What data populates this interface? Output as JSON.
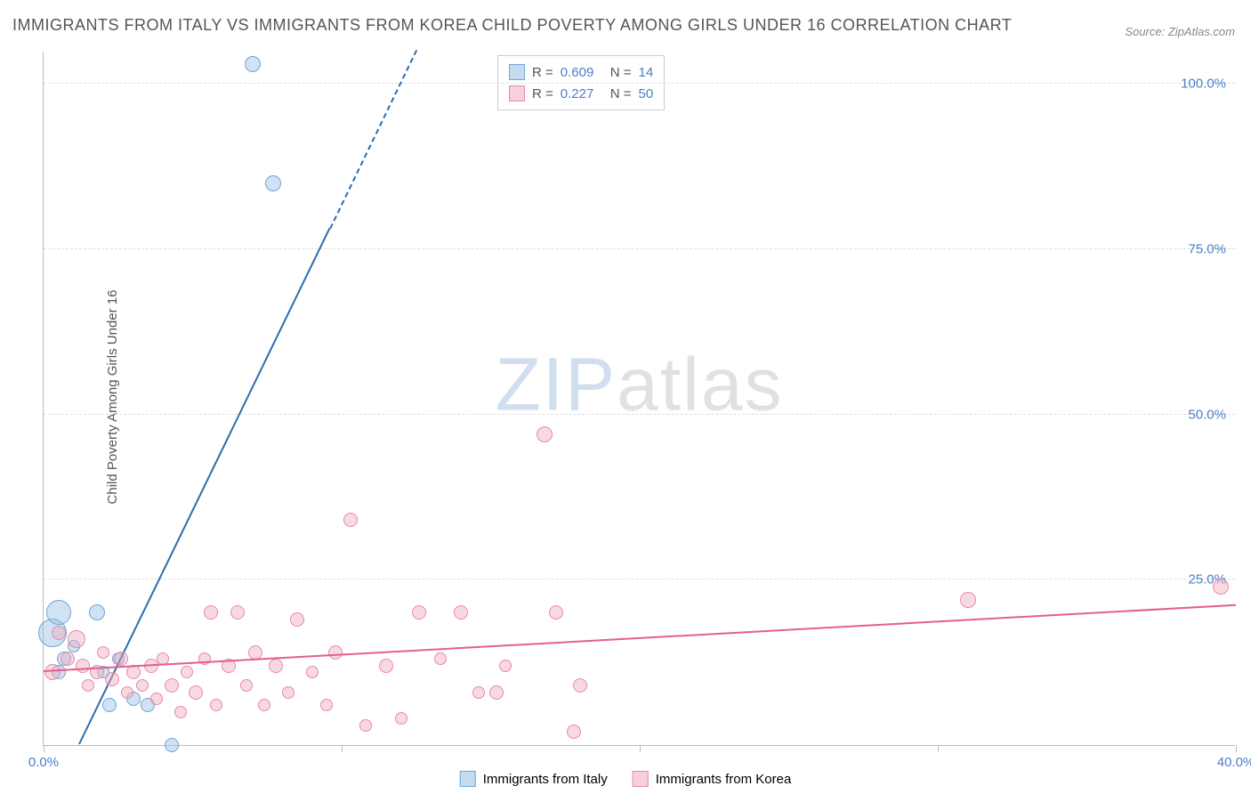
{
  "title": "IMMIGRANTS FROM ITALY VS IMMIGRANTS FROM KOREA CHILD POVERTY AMONG GIRLS UNDER 16 CORRELATION CHART",
  "source_label": "Source:",
  "source_value": "ZipAtlas.com",
  "ylabel": "Child Poverty Among Girls Under 16",
  "watermark_a": "ZIP",
  "watermark_b": "atlas",
  "chart": {
    "type": "scatter",
    "xlim": [
      0,
      40
    ],
    "ylim": [
      0,
      105
    ],
    "xtick_positions": [
      0,
      10,
      20,
      30,
      40
    ],
    "xtick_labels": [
      "0.0%",
      "",
      "",
      "",
      "40.0%"
    ],
    "ytick_positions": [
      25,
      50,
      75,
      100
    ],
    "ytick_labels": [
      "25.0%",
      "50.0%",
      "75.0%",
      "100.0%"
    ],
    "background_color": "#ffffff",
    "grid_color": "#dddddd",
    "axis_color": "#bbbbbb",
    "tick_label_color": "#4a7ec9",
    "series": [
      {
        "name": "Immigrants from Italy",
        "fill": "rgba(150,190,230,0.45)",
        "stroke": "#6fa4d8",
        "line_color": "#2b6cb0",
        "R": "0.609",
        "N": "14",
        "points": [
          {
            "x": 0.3,
            "y": 17,
            "r": 16
          },
          {
            "x": 0.5,
            "y": 20,
            "r": 14
          },
          {
            "x": 0.5,
            "y": 11,
            "r": 8
          },
          {
            "x": 0.7,
            "y": 13,
            "r": 8
          },
          {
            "x": 1.0,
            "y": 15,
            "r": 7
          },
          {
            "x": 1.8,
            "y": 20,
            "r": 9
          },
          {
            "x": 2.0,
            "y": 11,
            "r": 7
          },
          {
            "x": 2.2,
            "y": 6,
            "r": 8
          },
          {
            "x": 2.5,
            "y": 13,
            "r": 7
          },
          {
            "x": 3.0,
            "y": 7,
            "r": 8
          },
          {
            "x": 3.5,
            "y": 6,
            "r": 8
          },
          {
            "x": 4.3,
            "y": 0,
            "r": 8
          },
          {
            "x": 7.0,
            "y": 103,
            "r": 9
          },
          {
            "x": 7.7,
            "y": 85,
            "r": 9
          }
        ],
        "regression": {
          "x1": 1.2,
          "y1": 0,
          "x2": 9.6,
          "y2": 78,
          "x2_dash": 12.5,
          "y2_dash": 105
        }
      },
      {
        "name": "Immigrants from Korea",
        "fill": "rgba(240,170,190,0.45)",
        "stroke": "#e68aa4",
        "line_color": "#e45f8a",
        "R": "0.227",
        "N": "50",
        "points": [
          {
            "x": 0.3,
            "y": 11,
            "r": 9
          },
          {
            "x": 0.5,
            "y": 17,
            "r": 8
          },
          {
            "x": 0.8,
            "y": 13,
            "r": 8
          },
          {
            "x": 1.1,
            "y": 16,
            "r": 10
          },
          {
            "x": 1.3,
            "y": 12,
            "r": 8
          },
          {
            "x": 1.5,
            "y": 9,
            "r": 7
          },
          {
            "x": 1.8,
            "y": 11,
            "r": 8
          },
          {
            "x": 2.0,
            "y": 14,
            "r": 7
          },
          {
            "x": 2.3,
            "y": 10,
            "r": 8
          },
          {
            "x": 2.6,
            "y": 13,
            "r": 8
          },
          {
            "x": 2.8,
            "y": 8,
            "r": 7
          },
          {
            "x": 3.0,
            "y": 11,
            "r": 8
          },
          {
            "x": 3.3,
            "y": 9,
            "r": 7
          },
          {
            "x": 3.6,
            "y": 12,
            "r": 8
          },
          {
            "x": 3.8,
            "y": 7,
            "r": 7
          },
          {
            "x": 4.0,
            "y": 13,
            "r": 7
          },
          {
            "x": 4.3,
            "y": 9,
            "r": 8
          },
          {
            "x": 4.6,
            "y": 5,
            "r": 7
          },
          {
            "x": 4.8,
            "y": 11,
            "r": 7
          },
          {
            "x": 5.1,
            "y": 8,
            "r": 8
          },
          {
            "x": 5.4,
            "y": 13,
            "r": 7
          },
          {
            "x": 5.6,
            "y": 20,
            "r": 8
          },
          {
            "x": 5.8,
            "y": 6,
            "r": 7
          },
          {
            "x": 6.2,
            "y": 12,
            "r": 8
          },
          {
            "x": 6.5,
            "y": 20,
            "r": 8
          },
          {
            "x": 6.8,
            "y": 9,
            "r": 7
          },
          {
            "x": 7.1,
            "y": 14,
            "r": 8
          },
          {
            "x": 7.4,
            "y": 6,
            "r": 7
          },
          {
            "x": 7.8,
            "y": 12,
            "r": 8
          },
          {
            "x": 8.2,
            "y": 8,
            "r": 7
          },
          {
            "x": 8.5,
            "y": 19,
            "r": 8
          },
          {
            "x": 9.0,
            "y": 11,
            "r": 7
          },
          {
            "x": 9.5,
            "y": 6,
            "r": 7
          },
          {
            "x": 9.8,
            "y": 14,
            "r": 8
          },
          {
            "x": 10.3,
            "y": 34,
            "r": 8
          },
          {
            "x": 10.8,
            "y": 3,
            "r": 7
          },
          {
            "x": 11.5,
            "y": 12,
            "r": 8
          },
          {
            "x": 12.0,
            "y": 4,
            "r": 7
          },
          {
            "x": 12.6,
            "y": 20,
            "r": 8
          },
          {
            "x": 13.3,
            "y": 13,
            "r": 7
          },
          {
            "x": 14.0,
            "y": 20,
            "r": 8
          },
          {
            "x": 14.6,
            "y": 8,
            "r": 7
          },
          {
            "x": 15.2,
            "y": 8,
            "r": 8
          },
          {
            "x": 15.5,
            "y": 12,
            "r": 7
          },
          {
            "x": 16.8,
            "y": 47,
            "r": 9
          },
          {
            "x": 17.2,
            "y": 20,
            "r": 8
          },
          {
            "x": 17.8,
            "y": 2,
            "r": 8
          },
          {
            "x": 18.0,
            "y": 9,
            "r": 8
          },
          {
            "x": 31.0,
            "y": 22,
            "r": 9
          },
          {
            "x": 39.5,
            "y": 24,
            "r": 9
          }
        ],
        "regression": {
          "x1": 0,
          "y1": 11,
          "x2": 40,
          "y2": 21
        }
      }
    ]
  },
  "legend_top": {
    "rows": [
      {
        "swatch_fill": "rgba(150,190,230,0.55)",
        "swatch_stroke": "#6fa4d8",
        "R_label": "R =",
        "R": "0.609",
        "N_label": "N =",
        "N": "14"
      },
      {
        "swatch_fill": "rgba(240,170,190,0.55)",
        "swatch_stroke": "#e68aa4",
        "R_label": "R =",
        "R": "0.227",
        "N_label": "N =",
        "N": "50"
      }
    ]
  },
  "legend_bottom": {
    "items": [
      {
        "swatch_fill": "rgba(150,190,230,0.55)",
        "swatch_stroke": "#6fa4d8",
        "label": "Immigrants from Italy"
      },
      {
        "swatch_fill": "rgba(240,170,190,0.55)",
        "swatch_stroke": "#e68aa4",
        "label": "Immigrants from Korea"
      }
    ]
  }
}
